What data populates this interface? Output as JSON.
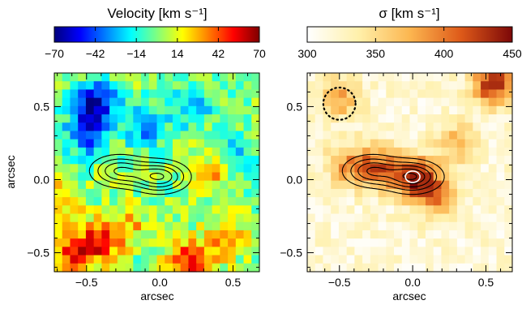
{
  "figure": {
    "left_panel": {
      "colorbar_title": "Velocity  [km s⁻¹]",
      "colorbar_ticks": [
        "−70",
        "−42",
        "−14",
        "14",
        "42",
        "70"
      ],
      "colorbar_range": [
        -70,
        70
      ],
      "colormap": "jet",
      "x_label": "arcsec",
      "y_label": "arcsec",
      "x_ticks": [
        "−0.5",
        "0.0",
        "0.5"
      ],
      "y_ticks": [
        "−0.5",
        "0.0",
        "0.5"
      ]
    },
    "right_panel": {
      "colorbar_title": "σ  [km s⁻¹]",
      "colorbar_ticks": [
        "300",
        "350",
        "400",
        "450"
      ],
      "colorbar_range": [
        300,
        450
      ],
      "colormap": "white-yellow-orange-darkred",
      "x_label": "arcsec",
      "x_ticks": [
        "−0.5",
        "0.0",
        "0.5"
      ],
      "y_ticks": [
        "−0.5",
        "0.0",
        "0.5"
      ]
    }
  },
  "chart_data": [
    {
      "type": "heatmap",
      "title": "Velocity  [km s⁻¹]",
      "xlabel": "arcsec",
      "ylabel": "arcsec",
      "xlim": [
        -0.72,
        0.68
      ],
      "ylim": [
        -0.63,
        0.73
      ],
      "grid": false,
      "colorbar_range": [
        -70,
        70
      ],
      "colormap": "jet",
      "hotspots": [
        {
          "x": -0.45,
          "y": 0.52,
          "v": -70
        },
        {
          "x": -0.5,
          "y": 0.3,
          "v": -40
        },
        {
          "x": -0.1,
          "y": 0.35,
          "v": -30
        },
        {
          "x": 0.2,
          "y": 0.5,
          "v": -30
        },
        {
          "x": 0.5,
          "y": 0.2,
          "v": -25
        },
        {
          "x": -0.4,
          "y": -0.42,
          "v": 55
        },
        {
          "x": -0.6,
          "y": -0.5,
          "v": 45
        },
        {
          "x": 0.2,
          "y": -0.55,
          "v": 50
        },
        {
          "x": 0.45,
          "y": -0.4,
          "v": 35
        },
        {
          "x": 0.35,
          "y": 0.05,
          "v": 30
        },
        {
          "x": -0.2,
          "y": -0.3,
          "v": 25
        },
        {
          "x": -0.65,
          "y": -0.15,
          "v": 30
        }
      ],
      "contour_levels": [
        1,
        2,
        3,
        4,
        5
      ],
      "contour_cores": [
        {
          "x": 0.0,
          "y": 0.02,
          "amp": 5.0
        },
        {
          "x": -0.28,
          "y": 0.06,
          "amp": 4.0
        }
      ]
    },
    {
      "type": "heatmap",
      "title": "σ  [km s⁻¹]",
      "xlabel": "arcsec",
      "xlim": [
        -0.72,
        0.68
      ],
      "ylim": [
        -0.63,
        0.73
      ],
      "grid": false,
      "colorbar_range": [
        300,
        450
      ],
      "colormap": "white-yellow-orange-darkred",
      "baseline": 318,
      "hotspots": [
        {
          "x": 0.0,
          "y": 0.02,
          "v": 440
        },
        {
          "x": -0.25,
          "y": 0.08,
          "v": 410
        },
        {
          "x": 0.15,
          "y": -0.1,
          "v": 400
        },
        {
          "x": -0.45,
          "y": 0.1,
          "v": 380
        },
        {
          "x": 0.55,
          "y": 0.65,
          "v": 440
        },
        {
          "x": -0.5,
          "y": 0.55,
          "v": 380
        },
        {
          "x": 0.3,
          "y": 0.25,
          "v": 370
        }
      ],
      "beam": {
        "x": -0.5,
        "y": 0.52,
        "r": 0.11
      },
      "contour_levels": [
        1,
        2,
        3,
        4,
        5
      ],
      "contour_cores": [
        {
          "x": 0.0,
          "y": 0.02,
          "amp": 5.0
        },
        {
          "x": -0.28,
          "y": 0.06,
          "amp": 4.0
        }
      ]
    }
  ]
}
